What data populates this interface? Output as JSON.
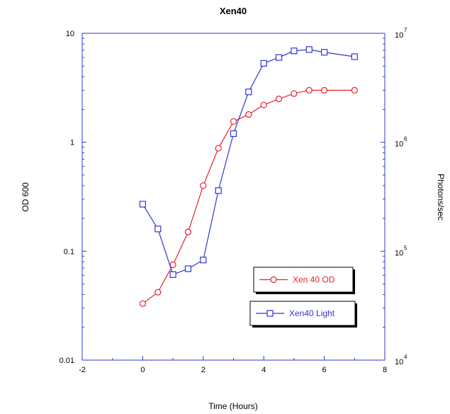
{
  "chart_data": {
    "type": "line",
    "title": "Xen40",
    "xlabel": "Time (Hours)",
    "ylabel": "OD 600",
    "y2label": "Photons/sec",
    "xlim": [
      -2,
      8
    ],
    "x_ticks": [
      "-2",
      "0",
      "2",
      "4",
      "6",
      "8"
    ],
    "ylim": [
      0.01,
      10
    ],
    "y_scale": "log",
    "y_ticks": [
      "0.01",
      "0.1",
      "1",
      "10"
    ],
    "y2lim": [
      10000,
      10000000
    ],
    "y2_scale": "log",
    "y2_ticks": [
      {
        "base": "10",
        "exp": "4"
      },
      {
        "base": "10",
        "exp": "5"
      },
      {
        "base": "10",
        "exp": "6"
      },
      {
        "base": "10",
        "exp": "7"
      }
    ],
    "grid": false,
    "legend_position": "bottom-right",
    "series": [
      {
        "name": "Xen 40 OD",
        "axis": "left",
        "marker": "circle",
        "color": "#e8202a",
        "x": [
          0,
          0.5,
          1,
          1.5,
          2,
          2.5,
          3,
          3.5,
          4,
          4.5,
          5,
          5.5,
          6,
          7
        ],
        "y": [
          0.033,
          0.042,
          0.075,
          0.15,
          0.4,
          0.88,
          1.55,
          1.8,
          2.2,
          2.5,
          2.8,
          3.0,
          3.0,
          3.0
        ]
      },
      {
        "name": "Xen40 Light",
        "axis": "right",
        "marker": "square",
        "color": "#2f35d6",
        "x": [
          0,
          0.5,
          1,
          1.5,
          2,
          2.5,
          3,
          3.5,
          4,
          4.5,
          5,
          5.5,
          6,
          7
        ],
        "y": [
          270000,
          160000,
          61000,
          69000,
          83000,
          360000,
          1200000,
          2900000,
          5300000,
          6000000,
          6900000,
          7100000,
          6700000,
          6100000
        ]
      }
    ]
  }
}
